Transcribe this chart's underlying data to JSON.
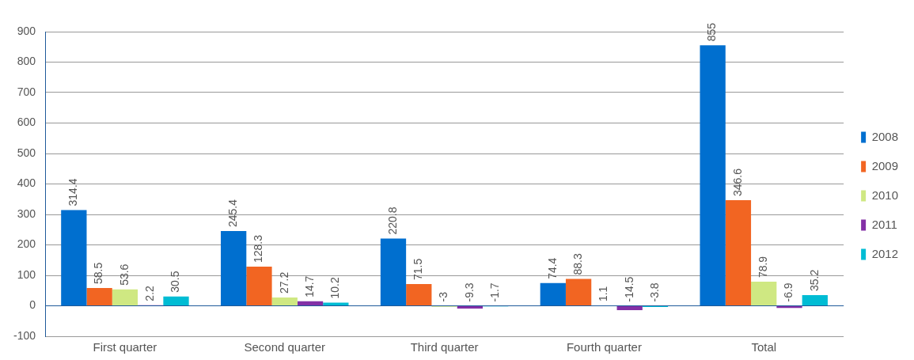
{
  "chart_data": {
    "type": "bar",
    "categories": [
      "First quarter",
      "Second quarter",
      "Third quarter",
      "Fourth quarter",
      "Total"
    ],
    "series": [
      {
        "name": "2008",
        "color": "#006fcf",
        "values": [
          314.4,
          245.4,
          220.8,
          74.4,
          855
        ]
      },
      {
        "name": "2009",
        "color": "#f26522",
        "values": [
          58.5,
          128.3,
          71.5,
          88.3,
          346.6
        ]
      },
      {
        "name": "2010",
        "color": "#cfe882",
        "values": [
          53.6,
          27.2,
          -3,
          1.1,
          78.9
        ]
      },
      {
        "name": "2011",
        "color": "#8330a6",
        "values": [
          2.2,
          14.7,
          -9.3,
          -14.5,
          -6.9
        ]
      },
      {
        "name": "2012",
        "color": "#00bcd4",
        "values": [
          30.5,
          10.2,
          -1.7,
          -3.8,
          35.2
        ]
      }
    ],
    "ylim": [
      -100,
      900
    ],
    "yticks": [
      -100,
      0,
      100,
      200,
      300,
      400,
      500,
      600,
      700,
      800,
      900
    ],
    "ref_lines": [
      {
        "axis": "y",
        "value": 0,
        "color": "#1f5a9a"
      }
    ],
    "grid": "y",
    "legend": "right",
    "data_labels": true
  }
}
